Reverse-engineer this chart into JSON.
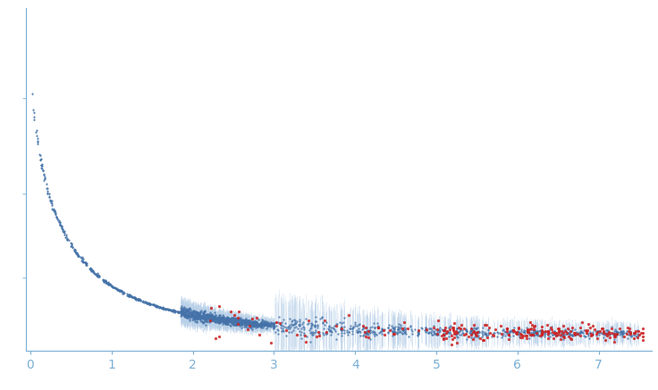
{
  "xlim": [
    -0.05,
    7.65
  ],
  "ylim": [
    -3,
    58
  ],
  "xticks": [
    0,
    1,
    2,
    3,
    4,
    5,
    6,
    7
  ],
  "background_color": "#ffffff",
  "blue_dot_color": "#4472a8",
  "red_dot_color": "#cc2222",
  "error_color": "#b8d0e8",
  "axis_color": "#7bafd4",
  "tick_color": "#7bafd4",
  "n_dense": 400,
  "n_mid": 900,
  "n_high": 700,
  "n_outlier_low": 50,
  "n_outlier_high": 200,
  "seed": 17,
  "max_intensity": 52,
  "decay_a": 1.8,
  "decay_b": 0.6
}
